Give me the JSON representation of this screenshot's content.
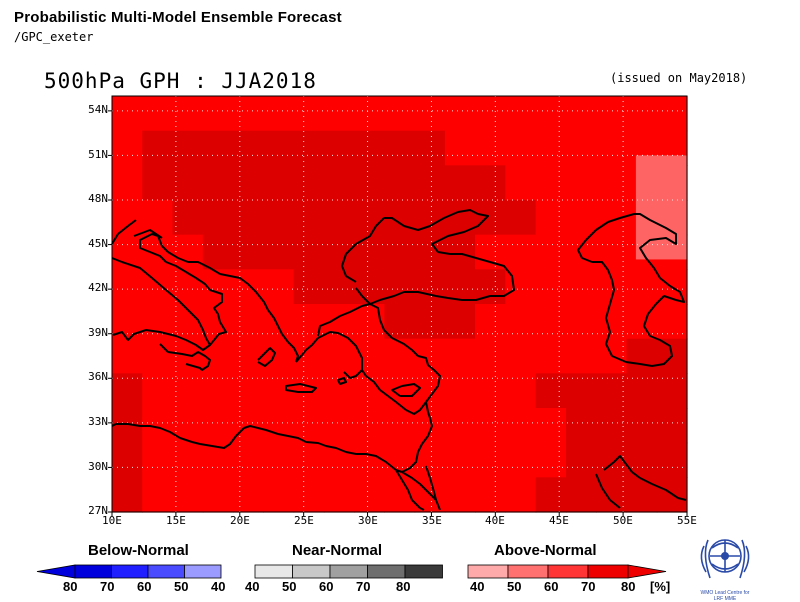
{
  "header": {
    "title": "Probabilistic Multi-Model Ensemble Forecast",
    "source": "/GPC_exeter"
  },
  "map": {
    "title": "500hPa GPH : JJA2018",
    "issued": "(issued on May2018)",
    "lat_labels": [
      "54N",
      "51N",
      "48N",
      "45N",
      "42N",
      "39N",
      "36N",
      "33N",
      "30N",
      "27N"
    ],
    "lon_labels": [
      "10E",
      "15E",
      "20E",
      "25E",
      "30E",
      "35E",
      "40E",
      "45E",
      "50E",
      "55E"
    ],
    "lat_range": [
      27,
      55
    ],
    "lon_range": [
      10,
      55
    ],
    "probability_grid": [
      [
        60,
        60,
        60,
        60,
        60,
        60,
        60,
        60,
        60,
        60,
        60,
        60,
        60,
        60,
        60,
        60,
        60,
        60,
        60
      ],
      [
        60,
        70,
        70,
        70,
        70,
        70,
        70,
        70,
        70,
        70,
        70,
        60,
        60,
        60,
        60,
        60,
        60,
        60,
        60
      ],
      [
        60,
        70,
        70,
        70,
        70,
        70,
        70,
        70,
        70,
        70,
        70,
        70,
        70,
        60,
        60,
        60,
        60,
        60,
        60
      ],
      [
        60,
        60,
        70,
        70,
        70,
        70,
        70,
        70,
        70,
        70,
        70,
        70,
        70,
        70,
        60,
        60,
        60,
        60,
        60
      ],
      [
        60,
        60,
        60,
        70,
        70,
        70,
        70,
        70,
        70,
        70,
        70,
        70,
        60,
        60,
        60,
        60,
        60,
        60,
        60
      ],
      [
        60,
        60,
        60,
        60,
        60,
        60,
        70,
        70,
        70,
        70,
        70,
        70,
        70,
        60,
        60,
        60,
        60,
        60,
        60
      ],
      [
        60,
        60,
        60,
        60,
        60,
        60,
        60,
        60,
        60,
        70,
        70,
        70,
        60,
        60,
        60,
        60,
        60,
        60,
        60
      ],
      [
        60,
        60,
        60,
        60,
        60,
        60,
        60,
        60,
        60,
        60,
        60,
        60,
        60,
        60,
        60,
        60,
        60,
        70,
        70
      ],
      [
        70,
        60,
        60,
        60,
        60,
        60,
        60,
        60,
        60,
        60,
        60,
        60,
        60,
        60,
        70,
        70,
        70,
        70,
        70
      ],
      [
        70,
        60,
        60,
        60,
        60,
        60,
        60,
        60,
        60,
        60,
        60,
        60,
        60,
        60,
        60,
        70,
        70,
        70,
        70
      ],
      [
        70,
        60,
        60,
        60,
        60,
        60,
        60,
        60,
        60,
        60,
        60,
        60,
        60,
        60,
        60,
        70,
        70,
        70,
        70
      ],
      [
        70,
        60,
        60,
        60,
        60,
        60,
        60,
        60,
        60,
        60,
        60,
        60,
        60,
        60,
        70,
        70,
        70,
        70,
        70
      ]
    ],
    "probability_patch": {
      "lon": [
        51,
        55
      ],
      "lat": [
        44,
        51
      ],
      "value": 50
    }
  },
  "legend": {
    "below": {
      "title": "Below-Normal",
      "values": [
        "80",
        "70",
        "60",
        "50",
        "40"
      ],
      "colors": [
        "#0000aa",
        "#0000dd",
        "#1f1fff",
        "#4a4aff",
        "#9b9bff"
      ]
    },
    "near": {
      "title": "Near-Normal",
      "values": [
        "40",
        "50",
        "60",
        "70",
        "80"
      ],
      "colors": [
        "#e8e8e8",
        "#c8c8c8",
        "#a0a0a0",
        "#6e6e6e",
        "#3a3a3a"
      ]
    },
    "above": {
      "title": "Above-Normal",
      "values": [
        "40",
        "50",
        "60",
        "70",
        "80"
      ],
      "colors": [
        "#ffaaaa",
        "#ff7070",
        "#ff3535",
        "#ee0000",
        "#c80000"
      ]
    },
    "unit": "[%]"
  },
  "colors": {
    "p50": "#ff6464",
    "p60": "#ff0000",
    "p70": "#dd0000",
    "grid": "#ffe0e0"
  },
  "logo": {
    "text_line1": "WMO Lead Centre for",
    "text_line2": "LRF MME"
  }
}
